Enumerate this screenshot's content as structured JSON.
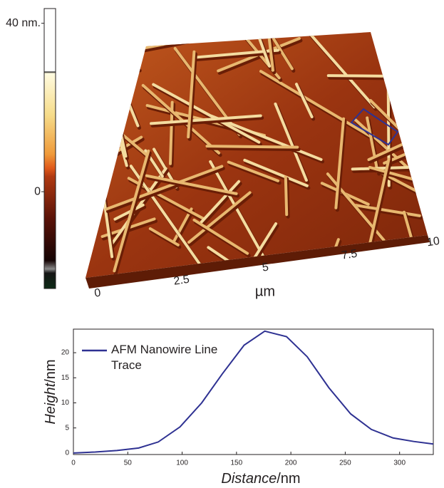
{
  "afm_image": {
    "colorbar": {
      "lim": [
        -23,
        43.5
      ],
      "ticks": [
        {
          "value": 40,
          "label": "40 nm."
        },
        0
      ]
    },
    "xlim": [
      0,
      10
    ],
    "xticks": [
      0,
      2.5,
      5,
      7.5,
      10
    ],
    "x_label": "µm"
  },
  "chart_data": {
    "type": "line",
    "x_label": {
      "name": "Distance",
      "unit": "/nm"
    },
    "y_label": {
      "name": "Height",
      "unit": "/nm"
    },
    "x": [
      0,
      20,
      40,
      60,
      78,
      98,
      118,
      137,
      157,
      176,
      196,
      215,
      235,
      255,
      274,
      294,
      313,
      331
    ],
    "series": [
      {
        "name": "AFM Nanowire Line Trace",
        "color": "#2e3192",
        "values": [
          0,
          0.2,
          0.5,
          1,
          2.2,
          5.2,
          10,
          15.8,
          21.5,
          24.3,
          23.2,
          19.2,
          13,
          7.8,
          4.7,
          3,
          2.3,
          1.8
        ]
      }
    ],
    "xlim": [
      0,
      331
    ],
    "ylim": [
      -0.3,
      24.7
    ],
    "xticks": [
      0,
      50,
      100,
      150,
      200,
      250,
      300
    ],
    "yticks": [
      0,
      5,
      10,
      15,
      20
    ],
    "legend": "upper left"
  }
}
